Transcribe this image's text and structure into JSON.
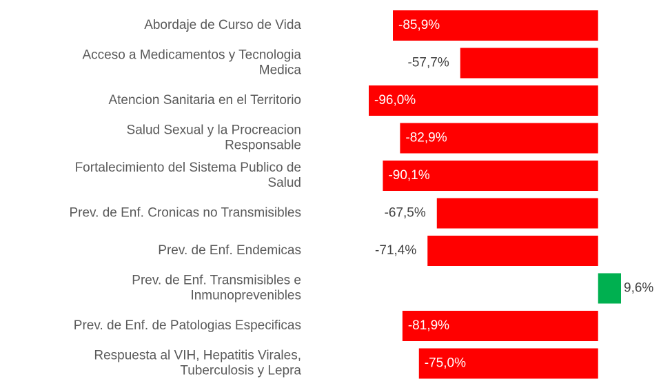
{
  "chart_data": {
    "type": "hbar",
    "categories": [
      "Abordaje de Curso de Vida",
      "Acceso a Medicamentos y Tecnologia\nMedica",
      "Atencion Sanitaria en el Territorio",
      "Salud Sexual y la Procreacion\nResponsable",
      "Fortalecimiento del Sistema Publico de\nSalud",
      "Prev. de Enf. Cronicas no Transmisibles",
      "Prev. de Enf. Endemicas",
      "Prev. de Enf. Transmisibles e\nInmunoprevenibles",
      "Prev. de Enf. de Patologias Especificas",
      "Respuesta al VIH, Hepatitis Virales,\nTuberculosis y Lepra"
    ],
    "values": [
      -85.9,
      -57.7,
      -96.0,
      -82.9,
      -90.1,
      -67.5,
      -71.4,
      9.6,
      -81.9,
      -75.0
    ],
    "value_labels": [
      "-85,9%",
      "-57,7%",
      "-96,0%",
      "-82,9%",
      "-90,1%",
      "-67,5%",
      "-71,4%",
      "9,6%",
      "-81,9%",
      "-75,0%"
    ],
    "colors": [
      "#ff0000",
      "#ff0000",
      "#ff0000",
      "#ff0000",
      "#ff0000",
      "#ff0000",
      "#ff0000",
      "#00b050",
      "#ff0000",
      "#ff0000"
    ]
  }
}
